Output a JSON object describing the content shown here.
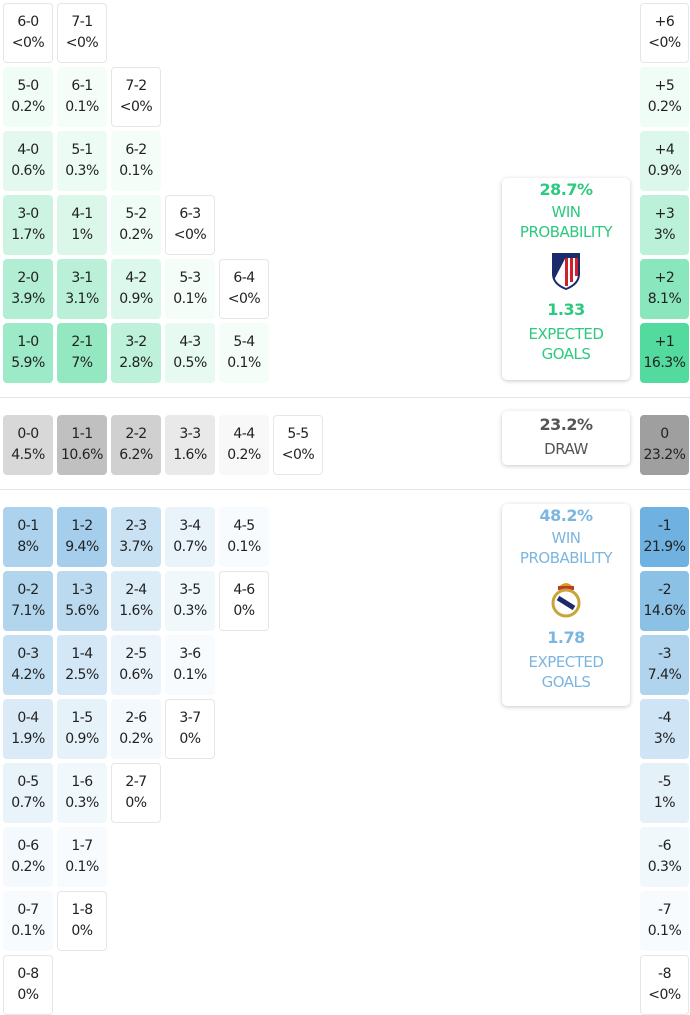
{
  "colors": {
    "home": "#4fd99c",
    "away": "#6fb1e0",
    "draw": "#9f9f9f",
    "home_text": "#2dc97f",
    "away_text": "#7cb6e0",
    "draw_text": "#555555"
  },
  "home_rows": [
    [
      [
        "6-0",
        "<0%"
      ],
      [
        "7-1",
        "<0%"
      ]
    ],
    [
      [
        "5-0",
        "0.2%"
      ],
      [
        "6-1",
        "0.1%"
      ],
      [
        "7-2",
        "<0%"
      ]
    ],
    [
      [
        "4-0",
        "0.6%"
      ],
      [
        "5-1",
        "0.3%"
      ],
      [
        "6-2",
        "0.1%"
      ]
    ],
    [
      [
        "3-0",
        "1.7%"
      ],
      [
        "4-1",
        "1%"
      ],
      [
        "5-2",
        "0.2%"
      ],
      [
        "6-3",
        "<0%"
      ]
    ],
    [
      [
        "2-0",
        "3.9%"
      ],
      [
        "3-1",
        "3.1%"
      ],
      [
        "4-2",
        "0.9%"
      ],
      [
        "5-3",
        "0.1%"
      ],
      [
        "6-4",
        "<0%"
      ]
    ],
    [
      [
        "1-0",
        "5.9%"
      ],
      [
        "2-1",
        "7%"
      ],
      [
        "3-2",
        "2.8%"
      ],
      [
        "4-3",
        "0.5%"
      ],
      [
        "5-4",
        "0.1%"
      ]
    ]
  ],
  "draw_row": [
    [
      "0-0",
      "4.5%"
    ],
    [
      "1-1",
      "10.6%"
    ],
    [
      "2-2",
      "6.2%"
    ],
    [
      "3-3",
      "1.6%"
    ],
    [
      "4-4",
      "0.2%"
    ],
    [
      "5-5",
      "<0%"
    ]
  ],
  "away_rows": [
    [
      [
        "0-1",
        "8%"
      ],
      [
        "1-2",
        "9.4%"
      ],
      [
        "2-3",
        "3.7%"
      ],
      [
        "3-4",
        "0.7%"
      ],
      [
        "4-5",
        "0.1%"
      ]
    ],
    [
      [
        "0-2",
        "7.1%"
      ],
      [
        "1-3",
        "5.6%"
      ],
      [
        "2-4",
        "1.6%"
      ],
      [
        "3-5",
        "0.3%"
      ],
      [
        "4-6",
        "0%"
      ]
    ],
    [
      [
        "0-3",
        "4.2%"
      ],
      [
        "1-4",
        "2.5%"
      ],
      [
        "2-5",
        "0.6%"
      ],
      [
        "3-6",
        "0.1%"
      ]
    ],
    [
      [
        "0-4",
        "1.9%"
      ],
      [
        "1-5",
        "0.9%"
      ],
      [
        "2-6",
        "0.2%"
      ],
      [
        "3-7",
        "0%"
      ]
    ],
    [
      [
        "0-5",
        "0.7%"
      ],
      [
        "1-6",
        "0.3%"
      ],
      [
        "2-7",
        "0%"
      ]
    ],
    [
      [
        "0-6",
        "0.2%"
      ],
      [
        "1-7",
        "0.1%"
      ]
    ],
    [
      [
        "0-7",
        "0.1%"
      ],
      [
        "1-8",
        "0%"
      ]
    ],
    [
      [
        "0-8",
        "0%"
      ]
    ]
  ],
  "margin_home": [
    [
      "+6",
      "<0%"
    ],
    [
      "+5",
      "0.2%"
    ],
    [
      "+4",
      "0.9%"
    ],
    [
      "+3",
      "3%"
    ],
    [
      "+2",
      "8.1%"
    ],
    [
      "+1",
      "16.3%"
    ]
  ],
  "margin_draw": [
    "0",
    "23.2%"
  ],
  "margin_away": [
    [
      "-1",
      "21.9%"
    ],
    [
      "-2",
      "14.6%"
    ],
    [
      "-3",
      "7.4%"
    ],
    [
      "-4",
      "3%"
    ],
    [
      "-5",
      "1%"
    ],
    [
      "-6",
      "0.3%"
    ],
    [
      "-7",
      "0.1%"
    ],
    [
      "-8",
      "<0%"
    ]
  ],
  "home_card": {
    "win_pct": "28.7%",
    "win_label_1": "WIN",
    "win_label_2": "PROBABILITY",
    "xg": "1.33",
    "xg_label_1": "EXPECTED",
    "xg_label_2": "GOALS",
    "crest": "atletico-madrid-crest"
  },
  "draw_card": {
    "pct": "23.2%",
    "label": "DRAW"
  },
  "away_card": {
    "win_pct": "48.2%",
    "win_label_1": "WIN",
    "win_label_2": "PROBABILITY",
    "xg": "1.78",
    "xg_label_1": "EXPECTED",
    "xg_label_2": "GOALS",
    "crest": "real-madrid-crest"
  }
}
